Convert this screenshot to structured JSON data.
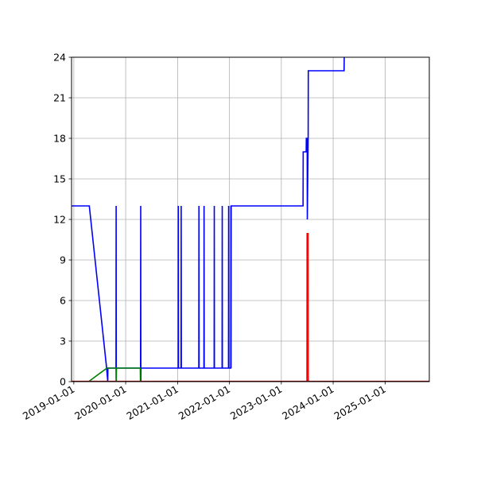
{
  "chart_data": {
    "type": "line",
    "title": "",
    "xlabel": "",
    "ylabel": "",
    "x_axis_type": "date",
    "xlim": [
      "2018-12-16",
      "2025-11-08"
    ],
    "ylim": [
      0,
      24
    ],
    "x_ticks": [
      "2019-01-01",
      "2020-01-01",
      "2021-01-01",
      "2022-01-01",
      "2023-01-01",
      "2024-01-01",
      "2025-01-01"
    ],
    "y_ticks": [
      0,
      3,
      6,
      9,
      12,
      15,
      18,
      21,
      24
    ],
    "x_tick_labels": [
      "2019-01-01",
      "2020-01-01",
      "2021-01-01",
      "2022-01-01",
      "2023-01-01",
      "2024-01-01",
      "2025-01-01"
    ],
    "y_tick_labels": [
      "0",
      "3",
      "6",
      "9",
      "12",
      "15",
      "18",
      "21",
      "24"
    ],
    "grid": true,
    "legend": "none",
    "series": [
      {
        "color": "#0000ff",
        "points": [
          [
            "2018-12-16",
            13
          ],
          [
            "2019-04-20",
            13
          ],
          [
            "2019-08-20",
            1
          ],
          [
            "2019-08-28",
            0
          ],
          [
            "2019-08-29",
            1
          ],
          [
            "2019-10-25",
            1
          ],
          [
            "2019-10-26",
            13
          ],
          [
            "2019-10-27",
            0
          ],
          [
            "2019-10-28",
            1
          ],
          [
            "2020-04-15",
            1
          ],
          [
            "2020-04-16",
            13
          ],
          [
            "2020-04-17",
            0
          ],
          [
            "2020-04-18",
            1
          ],
          [
            "2021-01-05",
            1
          ],
          [
            "2021-01-06",
            13
          ],
          [
            "2021-01-07",
            1
          ],
          [
            "2021-01-25",
            1
          ],
          [
            "2021-01-26",
            13
          ],
          [
            "2021-01-27",
            1
          ],
          [
            "2021-05-30",
            1
          ],
          [
            "2021-05-31",
            13
          ],
          [
            "2021-06-01",
            1
          ],
          [
            "2021-07-05",
            1
          ],
          [
            "2021-07-06",
            13
          ],
          [
            "2021-07-07",
            1
          ],
          [
            "2021-09-15",
            1
          ],
          [
            "2021-09-16",
            13
          ],
          [
            "2021-09-17",
            1
          ],
          [
            "2021-11-10",
            1
          ],
          [
            "2021-11-11",
            13
          ],
          [
            "2021-11-12",
            1
          ],
          [
            "2021-12-25",
            1
          ],
          [
            "2021-12-26",
            13
          ],
          [
            "2021-12-27",
            1
          ],
          [
            "2022-01-10",
            1
          ],
          [
            "2022-01-11",
            13
          ],
          [
            "2022-01-12",
            1
          ],
          [
            "2022-01-13",
            13
          ],
          [
            "2023-06-03",
            13
          ],
          [
            "2023-06-04",
            17
          ],
          [
            "2023-06-25",
            17
          ],
          [
            "2023-06-26",
            18
          ],
          [
            "2023-07-02",
            18
          ],
          [
            "2023-07-03",
            12
          ],
          [
            "2023-07-09",
            18
          ],
          [
            "2023-07-10",
            23
          ],
          [
            "2024-03-18",
            23
          ],
          [
            "2024-03-19",
            24
          ]
        ]
      },
      {
        "color": "#008000",
        "points": [
          [
            "2018-12-16",
            0
          ],
          [
            "2019-04-15",
            0
          ],
          [
            "2019-08-22",
            1
          ],
          [
            "2019-10-25",
            1
          ],
          [
            "2019-10-26",
            0
          ],
          [
            "2019-10-27",
            1
          ],
          [
            "2020-04-13",
            1
          ],
          [
            "2020-04-14",
            0
          ],
          [
            "2020-04-15",
            1
          ],
          [
            "2020-04-17",
            1
          ]
        ]
      },
      {
        "color": "#ff0000",
        "points": [
          [
            "2018-12-16",
            0
          ],
          [
            "2023-07-02",
            0
          ],
          [
            "2023-07-03",
            11
          ],
          [
            "2023-07-04",
            0
          ],
          [
            "2023-07-05",
            11
          ],
          [
            "2023-07-06",
            0
          ],
          [
            "2023-07-07",
            11
          ],
          [
            "2023-07-08",
            0
          ],
          [
            "2025-11-08",
            0
          ]
        ]
      },
      {
        "color": "#000000",
        "points": [
          [
            "2018-12-16",
            0
          ],
          [
            "2025-11-08",
            0
          ]
        ]
      }
    ]
  }
}
